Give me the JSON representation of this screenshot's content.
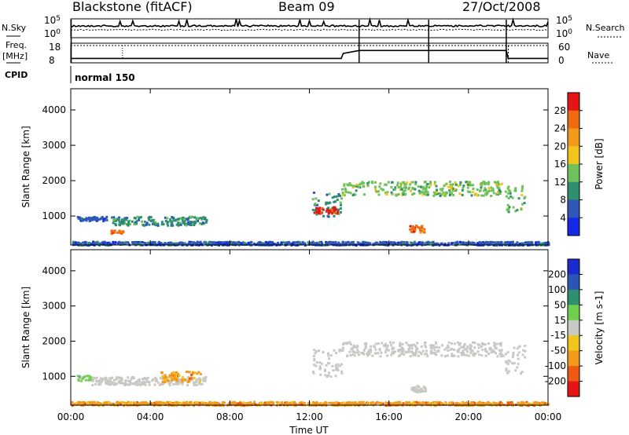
{
  "header": {
    "station": "Blackstone (fitACF)",
    "beam": "Beam 09",
    "date": "27/Oct/2008"
  },
  "summary": {
    "nsky_label": "N.Sky",
    "nsearch_label": "N.Search",
    "freq_label_line1": "Freq.",
    "freq_label_line2": "[MHz]",
    "nave_label": "Nave",
    "cpid_label": "CPID",
    "cpid_value": "normal 150",
    "nsky_ticks": [
      "10^5",
      "10^0"
    ],
    "nsearch_ticks": [
      "10^5",
      "10^0"
    ],
    "freq_ticks": [
      "18",
      "8"
    ],
    "nave_ticks": [
      "60",
      "0"
    ],
    "freq_steps": [
      [
        0,
        9.7
      ],
      [
        13.6,
        9.7
      ],
      [
        13.7,
        12.7
      ],
      [
        14.5,
        14.5
      ],
      [
        21.9,
        14.5
      ],
      [
        22.0,
        9.7
      ],
      [
        24.0,
        9.7
      ]
    ],
    "vertical_markers": [
      0.02,
      14.5,
      18.0,
      21.9
    ]
  },
  "chart_data": [
    {
      "type": "heatmap",
      "name": "power",
      "ylabel": "Slant Range [km]",
      "yticks": [
        "1000",
        "2000",
        "3000",
        "4000"
      ],
      "ylim": [
        180,
        4600
      ],
      "colorbar_label": "Power [dB]",
      "colorbar_ticks": [
        "4",
        "8",
        "12",
        "16",
        "20",
        "24",
        "28"
      ],
      "colors": [
        "#1428e6",
        "#2f56b8",
        "#2e8f6e",
        "#6fc15b",
        "#f2c51c",
        "#f29a1c",
        "#ef6b12",
        "#e61515"
      ],
      "patches": [
        {
          "x0": 0.3,
          "x1": 1.8,
          "r0": 890,
          "r1": 1010,
          "c": 1
        },
        {
          "x0": 2.0,
          "x1": 6.8,
          "r0": 760,
          "r1": 1010,
          "c": 2
        },
        {
          "x0": 2.0,
          "x1": 2.6,
          "r0": 520,
          "r1": 620,
          "c": 6
        },
        {
          "x0": 12.1,
          "x1": 13.6,
          "r0": 1000,
          "r1": 1700,
          "c": 2
        },
        {
          "x0": 12.2,
          "x1": 13.4,
          "r0": 1100,
          "r1": 1280,
          "c": 7
        },
        {
          "x0": 13.6,
          "x1": 21.7,
          "r0": 1600,
          "r1": 2000,
          "c": 3
        },
        {
          "x0": 17.0,
          "x1": 17.8,
          "r0": 560,
          "r1": 760,
          "c": 6
        },
        {
          "x0": 21.8,
          "x1": 22.8,
          "r0": 1100,
          "r1": 1900,
          "c": 3
        },
        {
          "x0": 0.0,
          "x1": 24.0,
          "r0": 200,
          "r1": 300,
          "c": 1
        }
      ]
    },
    {
      "type": "heatmap",
      "name": "velocity",
      "ylabel": "Slant Range [km]",
      "yticks": [
        "1000",
        "2000",
        "3000",
        "4000"
      ],
      "ylim": [
        180,
        4600
      ],
      "colorbar_label": "Velocity [m s-1]",
      "colorbar_ticks": [
        "200",
        "100",
        "50",
        "15",
        "-15",
        "-50",
        "-100",
        "-200"
      ],
      "colors": [
        "#1a2bd0",
        "#2b55b5",
        "#2f8f6f",
        "#6fd04e",
        "#c8c8c4",
        "#f2c51c",
        "#f29a1c",
        "#ef5a12",
        "#e61515"
      ],
      "patches": [
        {
          "x0": 0.3,
          "x1": 1.0,
          "r0": 900,
          "r1": 1050,
          "c": 3
        },
        {
          "x0": 1.0,
          "x1": 6.8,
          "r0": 780,
          "r1": 1010,
          "c": 4
        },
        {
          "x0": 4.5,
          "x1": 6.5,
          "r0": 860,
          "r1": 1200,
          "c": 6
        },
        {
          "x0": 12.1,
          "x1": 13.6,
          "r0": 1000,
          "r1": 1800,
          "c": 4
        },
        {
          "x0": 13.6,
          "x1": 21.7,
          "r0": 1600,
          "r1": 2000,
          "c": 4
        },
        {
          "x0": 17.0,
          "x1": 17.8,
          "r0": 560,
          "r1": 760,
          "c": 4
        },
        {
          "x0": 21.8,
          "x1": 22.8,
          "r0": 1100,
          "r1": 1900,
          "c": 4
        },
        {
          "x0": 0.0,
          "x1": 24.0,
          "r0": 200,
          "r1": 300,
          "c": 6
        }
      ]
    }
  ],
  "xaxis": {
    "label": "Time UT",
    "ticks": [
      "00:00",
      "04:00",
      "08:00",
      "12:00",
      "16:00",
      "20:00",
      "00:00"
    ],
    "xlim": [
      0,
      24
    ]
  }
}
